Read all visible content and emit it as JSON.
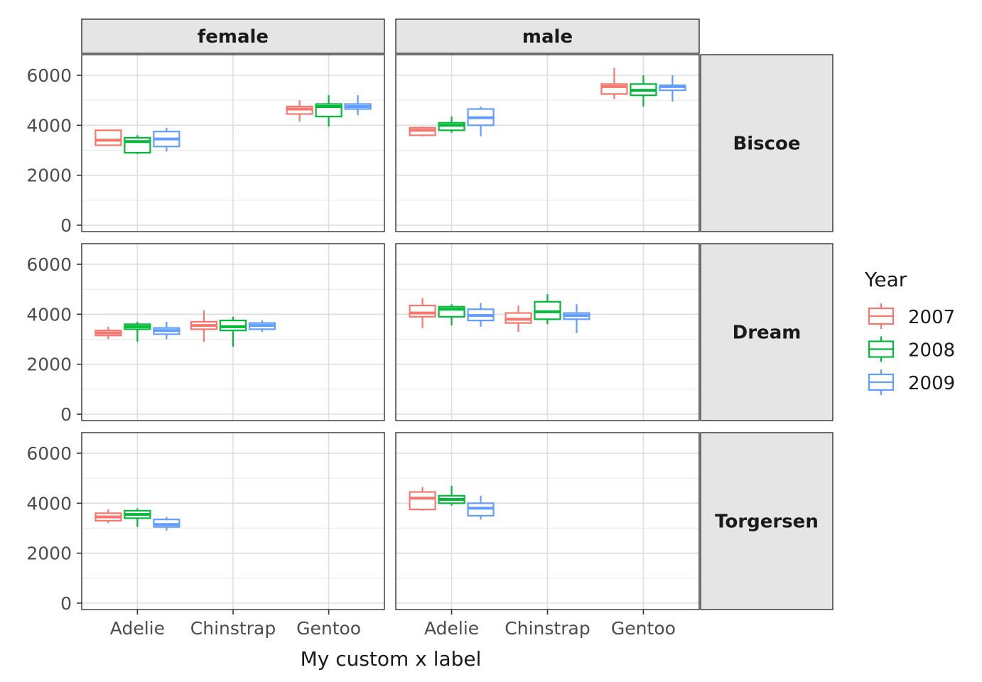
{
  "chart_data": {
    "type": "boxplot",
    "xlabel": "My custom x label",
    "ylabel": "",
    "ylim": [
      0,
      6700
    ],
    "yticks": [
      0,
      2000,
      4000,
      6000
    ],
    "categories": [
      "Adelie",
      "Chinstrap",
      "Gentoo"
    ],
    "col_facets": [
      "female",
      "male"
    ],
    "row_facets": [
      "Biscoe",
      "Dream",
      "Torgersen"
    ],
    "legend": {
      "title": "Year",
      "position": "right",
      "entries": [
        {
          "label": "2007",
          "color": "#F8766D"
        },
        {
          "label": "2008",
          "color": "#00BA38"
        },
        {
          "label": "2009",
          "color": "#619CFF"
        }
      ]
    },
    "grid": true,
    "boxes": [
      {
        "island": "Biscoe",
        "sex": "female",
        "species": "Adelie",
        "year": "2007",
        "min": 3200,
        "q1": 3200,
        "median": 3400,
        "q3": 3800,
        "max": 3800
      },
      {
        "island": "Biscoe",
        "sex": "female",
        "species": "Adelie",
        "year": "2008",
        "min": 2850,
        "q1": 2900,
        "median": 3350,
        "q3": 3500,
        "max": 3600
      },
      {
        "island": "Biscoe",
        "sex": "female",
        "species": "Adelie",
        "year": "2009",
        "min": 2950,
        "q1": 3150,
        "median": 3450,
        "q3": 3750,
        "max": 3900
      },
      {
        "island": "Biscoe",
        "sex": "female",
        "species": "Gentoo",
        "year": "2007",
        "min": 4150,
        "q1": 4450,
        "median": 4650,
        "q3": 4750,
        "max": 5000
      },
      {
        "island": "Biscoe",
        "sex": "female",
        "species": "Gentoo",
        "year": "2008",
        "min": 3950,
        "q1": 4350,
        "median": 4750,
        "q3": 4850,
        "max": 5200
      },
      {
        "island": "Biscoe",
        "sex": "female",
        "species": "Gentoo",
        "year": "2009",
        "min": 4400,
        "q1": 4650,
        "median": 4750,
        "q3": 4850,
        "max": 5200
      },
      {
        "island": "Biscoe",
        "sex": "male",
        "species": "Adelie",
        "year": "2007",
        "min": 3550,
        "q1": 3600,
        "median": 3800,
        "q3": 3900,
        "max": 3950
      },
      {
        "island": "Biscoe",
        "sex": "male",
        "species": "Adelie",
        "year": "2008",
        "min": 3700,
        "q1": 3800,
        "median": 4000,
        "q3": 4100,
        "max": 4350
      },
      {
        "island": "Biscoe",
        "sex": "male",
        "species": "Adelie",
        "year": "2009",
        "min": 3550,
        "q1": 4000,
        "median": 4300,
        "q3": 4650,
        "max": 4750
      },
      {
        "island": "Biscoe",
        "sex": "male",
        "species": "Gentoo",
        "year": "2007",
        "min": 5050,
        "q1": 5250,
        "median": 5550,
        "q3": 5650,
        "max": 6300
      },
      {
        "island": "Biscoe",
        "sex": "male",
        "species": "Gentoo",
        "year": "2008",
        "min": 4750,
        "q1": 5200,
        "median": 5400,
        "q3": 5650,
        "max": 6000
      },
      {
        "island": "Biscoe",
        "sex": "male",
        "species": "Gentoo",
        "year": "2009",
        "min": 4950,
        "q1": 5400,
        "median": 5550,
        "q3": 5600,
        "max": 6000
      },
      {
        "island": "Dream",
        "sex": "female",
        "species": "Adelie",
        "year": "2007",
        "min": 3000,
        "q1": 3150,
        "median": 3250,
        "q3": 3350,
        "max": 3500
      },
      {
        "island": "Dream",
        "sex": "female",
        "species": "Adelie",
        "year": "2008",
        "min": 2900,
        "q1": 3400,
        "median": 3500,
        "q3": 3600,
        "max": 3700
      },
      {
        "island": "Dream",
        "sex": "female",
        "species": "Adelie",
        "year": "2009",
        "min": 3000,
        "q1": 3200,
        "median": 3350,
        "q3": 3450,
        "max": 3700
      },
      {
        "island": "Dream",
        "sex": "female",
        "species": "Chinstrap",
        "year": "2007",
        "min": 2900,
        "q1": 3400,
        "median": 3550,
        "q3": 3700,
        "max": 4150
      },
      {
        "island": "Dream",
        "sex": "female",
        "species": "Chinstrap",
        "year": "2008",
        "min": 2700,
        "q1": 3350,
        "median": 3500,
        "q3": 3750,
        "max": 3900
      },
      {
        "island": "Dream",
        "sex": "female",
        "species": "Chinstrap",
        "year": "2009",
        "min": 3300,
        "q1": 3400,
        "median": 3550,
        "q3": 3650,
        "max": 3750
      },
      {
        "island": "Dream",
        "sex": "male",
        "species": "Adelie",
        "year": "2007",
        "min": 3450,
        "q1": 3900,
        "median": 4050,
        "q3": 4350,
        "max": 4650
      },
      {
        "island": "Dream",
        "sex": "male",
        "species": "Adelie",
        "year": "2008",
        "min": 3550,
        "q1": 3900,
        "median": 4200,
        "q3": 4300,
        "max": 4400
      },
      {
        "island": "Dream",
        "sex": "male",
        "species": "Adelie",
        "year": "2009",
        "min": 3500,
        "q1": 3750,
        "median": 3950,
        "q3": 4200,
        "max": 4450
      },
      {
        "island": "Dream",
        "sex": "male",
        "species": "Chinstrap",
        "year": "2007",
        "min": 3300,
        "q1": 3650,
        "median": 3800,
        "q3": 4050,
        "max": 4350
      },
      {
        "island": "Dream",
        "sex": "male",
        "species": "Chinstrap",
        "year": "2008",
        "min": 3600,
        "q1": 3800,
        "median": 4100,
        "q3": 4500,
        "max": 4800
      },
      {
        "island": "Dream",
        "sex": "male",
        "species": "Chinstrap",
        "year": "2009",
        "min": 3250,
        "q1": 3800,
        "median": 3950,
        "q3": 4050,
        "max": 4400
      },
      {
        "island": "Torgersen",
        "sex": "female",
        "species": "Adelie",
        "year": "2007",
        "min": 3200,
        "q1": 3300,
        "median": 3450,
        "q3": 3600,
        "max": 3750
      },
      {
        "island": "Torgersen",
        "sex": "female",
        "species": "Adelie",
        "year": "2008",
        "min": 3050,
        "q1": 3400,
        "median": 3550,
        "q3": 3700,
        "max": 3800
      },
      {
        "island": "Torgersen",
        "sex": "female",
        "species": "Adelie",
        "year": "2009",
        "min": 2900,
        "q1": 3050,
        "median": 3150,
        "q3": 3350,
        "max": 3450
      },
      {
        "island": "Torgersen",
        "sex": "male",
        "species": "Adelie",
        "year": "2007",
        "min": 3700,
        "q1": 3750,
        "median": 4200,
        "q3": 4450,
        "max": 4650
      },
      {
        "island": "Torgersen",
        "sex": "male",
        "species": "Adelie",
        "year": "2008",
        "min": 3900,
        "q1": 4000,
        "median": 4150,
        "q3": 4300,
        "max": 4700
      },
      {
        "island": "Torgersen",
        "sex": "male",
        "species": "Adelie",
        "year": "2009",
        "min": 3350,
        "q1": 3500,
        "median": 3800,
        "q3": 4000,
        "max": 4300
      }
    ]
  }
}
